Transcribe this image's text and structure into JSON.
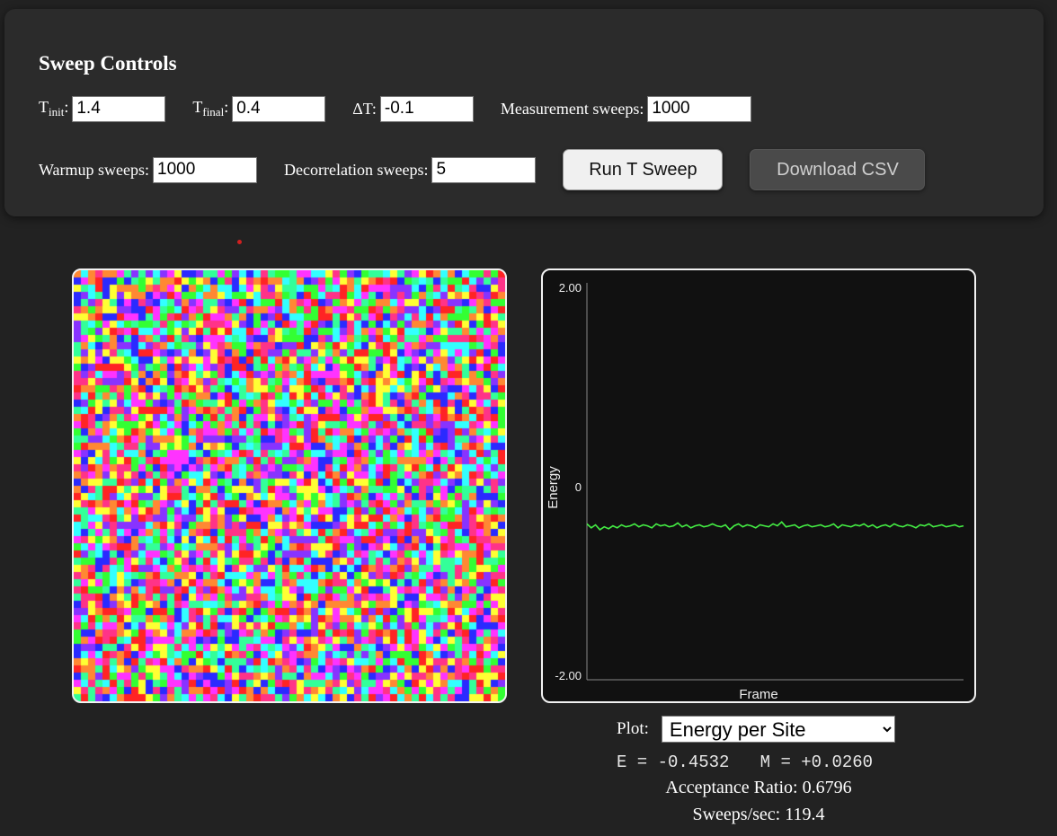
{
  "controls": {
    "title": "Sweep Controls",
    "t_init": {
      "base": "T",
      "sub": "init",
      "suffix": ":",
      "value": "1.4"
    },
    "t_final": {
      "base": "T",
      "sub": "final",
      "suffix": ":",
      "value": "0.4"
    },
    "delta_t": {
      "label": "ΔT:",
      "value": "-0.1"
    },
    "measurement": {
      "label": "Measurement sweeps:",
      "value": "1000"
    },
    "warmup": {
      "label": "Warmup sweeps:",
      "value": "1000"
    },
    "decorrelation": {
      "label": "Decorrelation sweeps:",
      "value": "5"
    },
    "run_button": "Run T Sweep",
    "download_button": "Download CSV"
  },
  "lattice": {
    "palette": [
      "#ff2424",
      "#ff33ff",
      "#2a2aff",
      "#33ffff",
      "#33ff33",
      "#ffff33",
      "#ff8833",
      "#8833ff",
      "#33ff99",
      "#ff3388"
    ]
  },
  "plot": {
    "select_label": "Plot:",
    "selected": "Energy per Site",
    "readout_e": "E = -0.4532",
    "readout_m": "M = +0.0260",
    "acceptance": "Acceptance Ratio: 0.6796",
    "sweeps_per_sec": "Sweeps/sec: 119.4"
  },
  "chart_data": {
    "type": "line",
    "xlabel": "Frame",
    "ylabel": "Energy",
    "ylim": [
      -2,
      2
    ],
    "ytick_labels": [
      "2.00",
      "0",
      "-2.00"
    ],
    "line_color": "#44ee44",
    "series": [
      {
        "values": [
          -0.43,
          -0.47,
          -0.44,
          -0.49,
          -0.46,
          -0.48,
          -0.45,
          -0.47,
          -0.44,
          -0.46,
          -0.45,
          -0.43,
          -0.46,
          -0.44,
          -0.45,
          -0.47,
          -0.43,
          -0.45,
          -0.44,
          -0.46,
          -0.45,
          -0.42,
          -0.46,
          -0.44,
          -0.47,
          -0.45,
          -0.44,
          -0.46,
          -0.45,
          -0.43,
          -0.45,
          -0.46,
          -0.44,
          -0.49,
          -0.45,
          -0.43,
          -0.46,
          -0.44,
          -0.45,
          -0.47,
          -0.44,
          -0.45,
          -0.46,
          -0.43,
          -0.45,
          -0.41,
          -0.46,
          -0.45,
          -0.44,
          -0.47,
          -0.45,
          -0.44,
          -0.46,
          -0.45,
          -0.44,
          -0.46,
          -0.45,
          -0.43,
          -0.47,
          -0.44,
          -0.45,
          -0.46,
          -0.44,
          -0.45,
          -0.43,
          -0.46,
          -0.44,
          -0.47,
          -0.45,
          -0.44,
          -0.46,
          -0.43,
          -0.45,
          -0.46,
          -0.44,
          -0.45,
          -0.47,
          -0.44,
          -0.45,
          -0.43,
          -0.46,
          -0.45,
          -0.44,
          -0.46,
          -0.45,
          -0.44,
          -0.46,
          -0.45
        ]
      }
    ]
  }
}
